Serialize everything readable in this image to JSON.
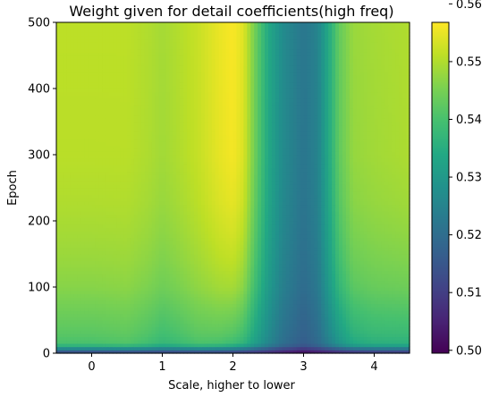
{
  "chart_data": {
    "type": "heatmap",
    "title": "Weight given for detail coefficients(high freq)",
    "xlabel": "Scale, higher to lower",
    "ylabel": "Epoch",
    "x_ticks": [
      0,
      1,
      2,
      3,
      4
    ],
    "y_ticks": [
      0,
      100,
      200,
      300,
      400,
      500
    ],
    "xlim": [
      -0.5,
      4.5
    ],
    "ylim": [
      0,
      500
    ],
    "colormap": "viridis",
    "colorbar": {
      "range": [
        0.4995,
        0.5568
      ],
      "ticks": [
        0.5,
        0.51,
        0.52,
        0.53,
        0.54,
        0.55,
        0.56
      ]
    },
    "x_profile": [
      {
        "x": -0.5,
        "late": 0.551,
        "early": 0.538
      },
      {
        "x": 0.0,
        "late": 0.551,
        "early": 0.538
      },
      {
        "x": 0.5,
        "late": 0.551,
        "early": 0.539
      },
      {
        "x": 0.8,
        "late": 0.55,
        "early": 0.537
      },
      {
        "x": 1.0,
        "late": 0.549,
        "early": 0.535
      },
      {
        "x": 1.2,
        "late": 0.55,
        "early": 0.536
      },
      {
        "x": 1.5,
        "late": 0.552,
        "early": 0.538
      },
      {
        "x": 1.8,
        "late": 0.555,
        "early": 0.537
      },
      {
        "x": 2.0,
        "late": 0.5565,
        "early": 0.535
      },
      {
        "x": 2.15,
        "late": 0.554,
        "early": 0.533
      },
      {
        "x": 2.3,
        "late": 0.545,
        "early": 0.529
      },
      {
        "x": 2.5,
        "late": 0.534,
        "early": 0.524
      },
      {
        "x": 2.7,
        "late": 0.527,
        "early": 0.519
      },
      {
        "x": 3.0,
        "late": 0.522,
        "early": 0.515
      },
      {
        "x": 3.2,
        "late": 0.525,
        "early": 0.518
      },
      {
        "x": 3.5,
        "late": 0.543,
        "early": 0.526
      },
      {
        "x": 3.7,
        "late": 0.548,
        "early": 0.531
      },
      {
        "x": 4.0,
        "late": 0.549,
        "early": 0.533
      },
      {
        "x": 4.5,
        "late": 0.55,
        "early": 0.533
      }
    ],
    "epoch_profile": [
      {
        "epoch": 0,
        "w": 0.0
      },
      {
        "epoch": 5,
        "w": 0.0
      },
      {
        "epoch": 15,
        "w": 0.16
      },
      {
        "epoch": 30,
        "w": 0.3
      },
      {
        "epoch": 45,
        "w": 0.38
      },
      {
        "epoch": 60,
        "w": 0.45
      },
      {
        "epoch": 80,
        "w": 0.55
      },
      {
        "epoch": 100,
        "w": 0.65
      },
      {
        "epoch": 140,
        "w": 0.76
      },
      {
        "epoch": 180,
        "w": 0.84
      },
      {
        "epoch": 230,
        "w": 0.92
      },
      {
        "epoch": 300,
        "w": 0.98
      },
      {
        "epoch": 500,
        "w": 1.0
      }
    ],
    "initial_profile": [
      {
        "x": -0.5,
        "v": 0.5075
      },
      {
        "x": 1.0,
        "v": 0.5075
      },
      {
        "x": 2.0,
        "v": 0.507
      },
      {
        "x": 2.5,
        "v": 0.504
      },
      {
        "x": 3.0,
        "v": 0.4995
      },
      {
        "x": 3.5,
        "v": 0.5035
      },
      {
        "x": 4.0,
        "v": 0.505
      },
      {
        "x": 4.5,
        "v": 0.505
      }
    ]
  }
}
